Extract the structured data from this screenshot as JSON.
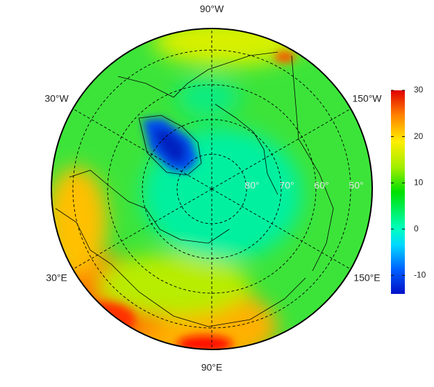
{
  "chart_data": {
    "type": "polar-map",
    "longitudes": [
      {
        "value": -90,
        "label": "90°W"
      },
      {
        "value": -30,
        "label": "30°W"
      },
      {
        "value": -150,
        "label": "150°W"
      },
      {
        "value": 30,
        "label": "30°E"
      },
      {
        "value": 150,
        "label": "150°E"
      },
      {
        "value": 90,
        "label": "90°E"
      }
    ],
    "latitudes": [
      {
        "value": 80,
        "label": "80°"
      },
      {
        "value": 70,
        "label": "70°"
      },
      {
        "value": 60,
        "label": "60°"
      },
      {
        "value": 50,
        "label": "50°"
      }
    ],
    "colorbar": {
      "ylim": [
        -14,
        30
      ],
      "yticks": [
        -10,
        0,
        10,
        20,
        30
      ]
    }
  }
}
